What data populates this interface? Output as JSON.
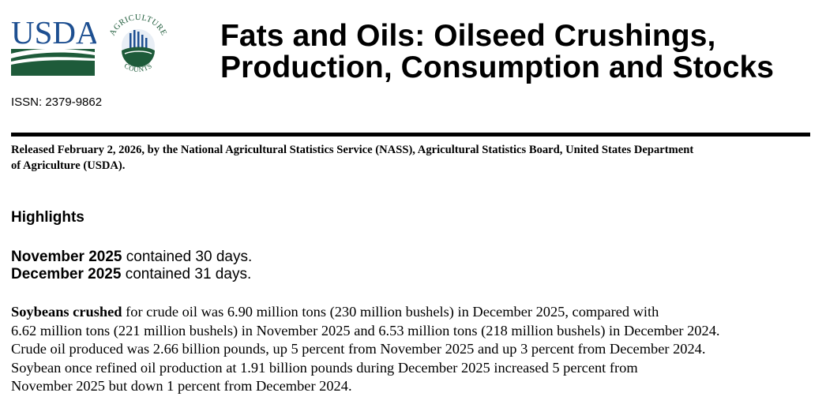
{
  "header": {
    "logo_usda_text": "USDA",
    "logo_ag_text_top": "AGRICULTURE",
    "logo_ag_text_bottom": "COUNTS",
    "title_line1": "Fats and Oils: Oilseed Crushings,",
    "title_line2": "Production, Consumption and Stocks",
    "issn": "ISSN: 2379-9862"
  },
  "release": {
    "text_line1": "Released February 2, 2026, by the National Agricultural Statistics Service (NASS), Agricultural Statistics Board, United States Department",
    "text_line2": "of Agriculture (USDA)."
  },
  "highlights": {
    "heading": "Highlights",
    "days": [
      {
        "month": "November 2025",
        "rest": " contained 30 days."
      },
      {
        "month": "December 2025",
        "rest": " contained 31 days."
      }
    ],
    "soybean": {
      "lead": "Soybeans crushed",
      "line1_rest": " for crude oil was 6.90 million tons (230 million bushels) in December 2025, compared with",
      "line2": "6.62 million tons (221 million bushels) in November 2025 and 6.53 million tons (218 million bushels) in December 2024.",
      "line3": "Crude oil produced was 2.66 billion pounds, up 5 percent from November 2025 and up 3 percent from December 2024.",
      "line4": "Soybean once refined oil production at 1.91 billion pounds during December 2025 increased 5 percent from",
      "line5": "November 2025 but down 1 percent from December 2024."
    }
  },
  "colors": {
    "usda_blue": "#1d4f91",
    "usda_green": "#1e5b3a"
  }
}
